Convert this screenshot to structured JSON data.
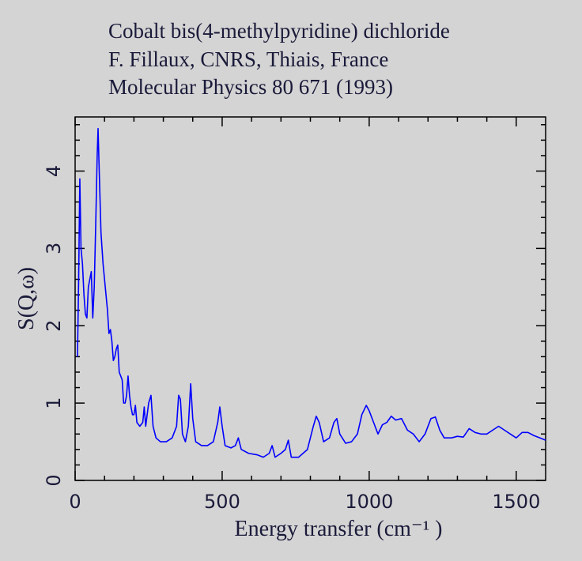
{
  "chart_data": {
    "type": "line",
    "title": [
      "Cobalt bis(4-methylpyridine) dichloride",
      "F. Fillaux, CNRS, Thiais, France",
      "Molecular Physics 80 671 (1993)"
    ],
    "xlabel": "Energy transfer (cm⁻¹ )",
    "ylabel": "S(Q,ω)",
    "x": [
      8,
      12,
      16,
      20,
      25,
      30,
      35,
      40,
      45,
      50,
      55,
      60,
      65,
      70,
      75,
      78,
      82,
      88,
      95,
      100,
      110,
      115,
      120,
      125,
      130,
      135,
      140,
      145,
      150,
      155,
      160,
      165,
      170,
      175,
      180,
      185,
      190,
      195,
      200,
      205,
      210,
      220,
      230,
      235,
      240,
      250,
      258,
      265,
      275,
      290,
      310,
      330,
      345,
      352,
      358,
      365,
      375,
      385,
      393,
      400,
      410,
      430,
      450,
      470,
      485,
      492,
      500,
      510,
      530,
      545,
      555,
      565,
      590,
      620,
      640,
      660,
      670,
      680,
      700,
      715,
      725,
      735,
      760,
      790,
      810,
      820,
      830,
      845,
      865,
      880,
      890,
      900,
      920,
      940,
      960,
      975,
      990,
      1000,
      1015,
      1030,
      1045,
      1060,
      1075,
      1090,
      1110,
      1130,
      1150,
      1170,
      1190,
      1210,
      1225,
      1240,
      1255,
      1280,
      1300,
      1320,
      1340,
      1360,
      1380,
      1400,
      1420,
      1440,
      1460,
      1480,
      1500,
      1520,
      1540,
      1560,
      1580,
      1600
    ],
    "series": [
      {
        "color": "#0000ff",
        "values": [
          1.6,
          2.6,
          3.9,
          3.0,
          2.8,
          2.4,
          2.15,
          2.1,
          2.5,
          2.6,
          2.7,
          2.1,
          2.5,
          3.3,
          4.2,
          4.55,
          4.0,
          3.2,
          2.8,
          2.6,
          2.2,
          1.9,
          1.95,
          1.8,
          1.55,
          1.6,
          1.7,
          1.75,
          1.4,
          1.35,
          1.3,
          1.0,
          1.0,
          1.1,
          1.35,
          1.1,
          0.95,
          0.85,
          0.85,
          0.97,
          0.75,
          0.7,
          0.75,
          0.95,
          0.7,
          1.0,
          1.1,
          0.7,
          0.55,
          0.5,
          0.5,
          0.55,
          0.7,
          1.1,
          1.05,
          0.6,
          0.5,
          0.7,
          1.25,
          0.8,
          0.5,
          0.45,
          0.45,
          0.5,
          0.75,
          0.95,
          0.7,
          0.45,
          0.42,
          0.45,
          0.55,
          0.4,
          0.35,
          0.33,
          0.3,
          0.35,
          0.45,
          0.3,
          0.35,
          0.4,
          0.52,
          0.3,
          0.3,
          0.4,
          0.7,
          0.83,
          0.75,
          0.5,
          0.55,
          0.75,
          0.8,
          0.6,
          0.48,
          0.5,
          0.6,
          0.85,
          0.97,
          0.9,
          0.75,
          0.6,
          0.72,
          0.75,
          0.83,
          0.78,
          0.8,
          0.65,
          0.6,
          0.5,
          0.6,
          0.8,
          0.82,
          0.65,
          0.55,
          0.55,
          0.57,
          0.56,
          0.67,
          0.62,
          0.6,
          0.6,
          0.65,
          0.7,
          0.65,
          0.6,
          0.55,
          0.62,
          0.62,
          0.58,
          0.55,
          0.52
        ]
      }
    ],
    "xlim": [
      0,
      1600
    ],
    "ylim": [
      0,
      4.7
    ],
    "xticks": [
      0,
      500,
      1000,
      1500
    ],
    "yticks": [
      0,
      1,
      2,
      3,
      4
    ],
    "xminorticks": [
      100,
      200,
      300,
      400,
      600,
      700,
      800,
      900,
      1100,
      1200,
      1300,
      1400
    ],
    "yminorticks": [
      0.2,
      0.4,
      0.6,
      0.8,
      1.2,
      1.4,
      1.6,
      1.8,
      2.2,
      2.4,
      2.6,
      2.8,
      3.2,
      3.4,
      3.6,
      3.8,
      4.2,
      4.4,
      4.6
    ]
  }
}
